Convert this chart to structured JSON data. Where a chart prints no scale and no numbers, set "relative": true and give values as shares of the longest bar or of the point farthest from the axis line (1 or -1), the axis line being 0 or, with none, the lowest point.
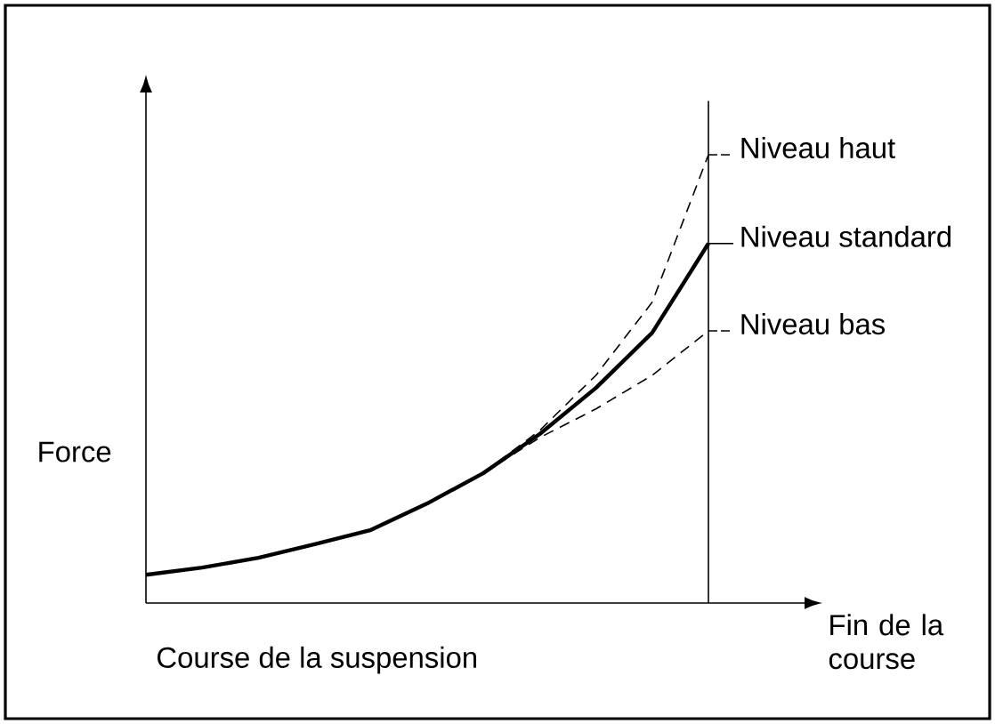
{
  "chart_data": {
    "type": "line",
    "relative": true,
    "xlabel": "Course de la suspension",
    "ylabel": "Force",
    "categories": [
      null,
      null,
      null,
      null,
      null,
      null,
      null,
      null,
      null,
      null,
      null
    ],
    "series": [
      {
        "name": "Niveau haut",
        "color": "#000000",
        "line_style": "dashed",
        "values": [
          null,
          null,
          null,
          null,
          null,
          null,
          0.29,
          0.385,
          0.508,
          0.671,
          1
        ]
      },
      {
        "name": "Niveau standard",
        "color": "#000000",
        "line_style": "solid",
        "values": [
          0.063,
          0.079,
          0.101,
          0.131,
          0.163,
          0.222,
          0.29,
          0.377,
          0.48,
          0.603,
          0.802
        ]
      },
      {
        "name": "Niveau bas",
        "color": "#000000",
        "line_style": "dashed",
        "values": [
          null,
          null,
          null,
          null,
          null,
          null,
          0.29,
          0.369,
          0.433,
          0.508,
          0.607
        ]
      }
    ],
    "legend": "right",
    "annotations": [
      "Fin de la course"
    ]
  }
}
